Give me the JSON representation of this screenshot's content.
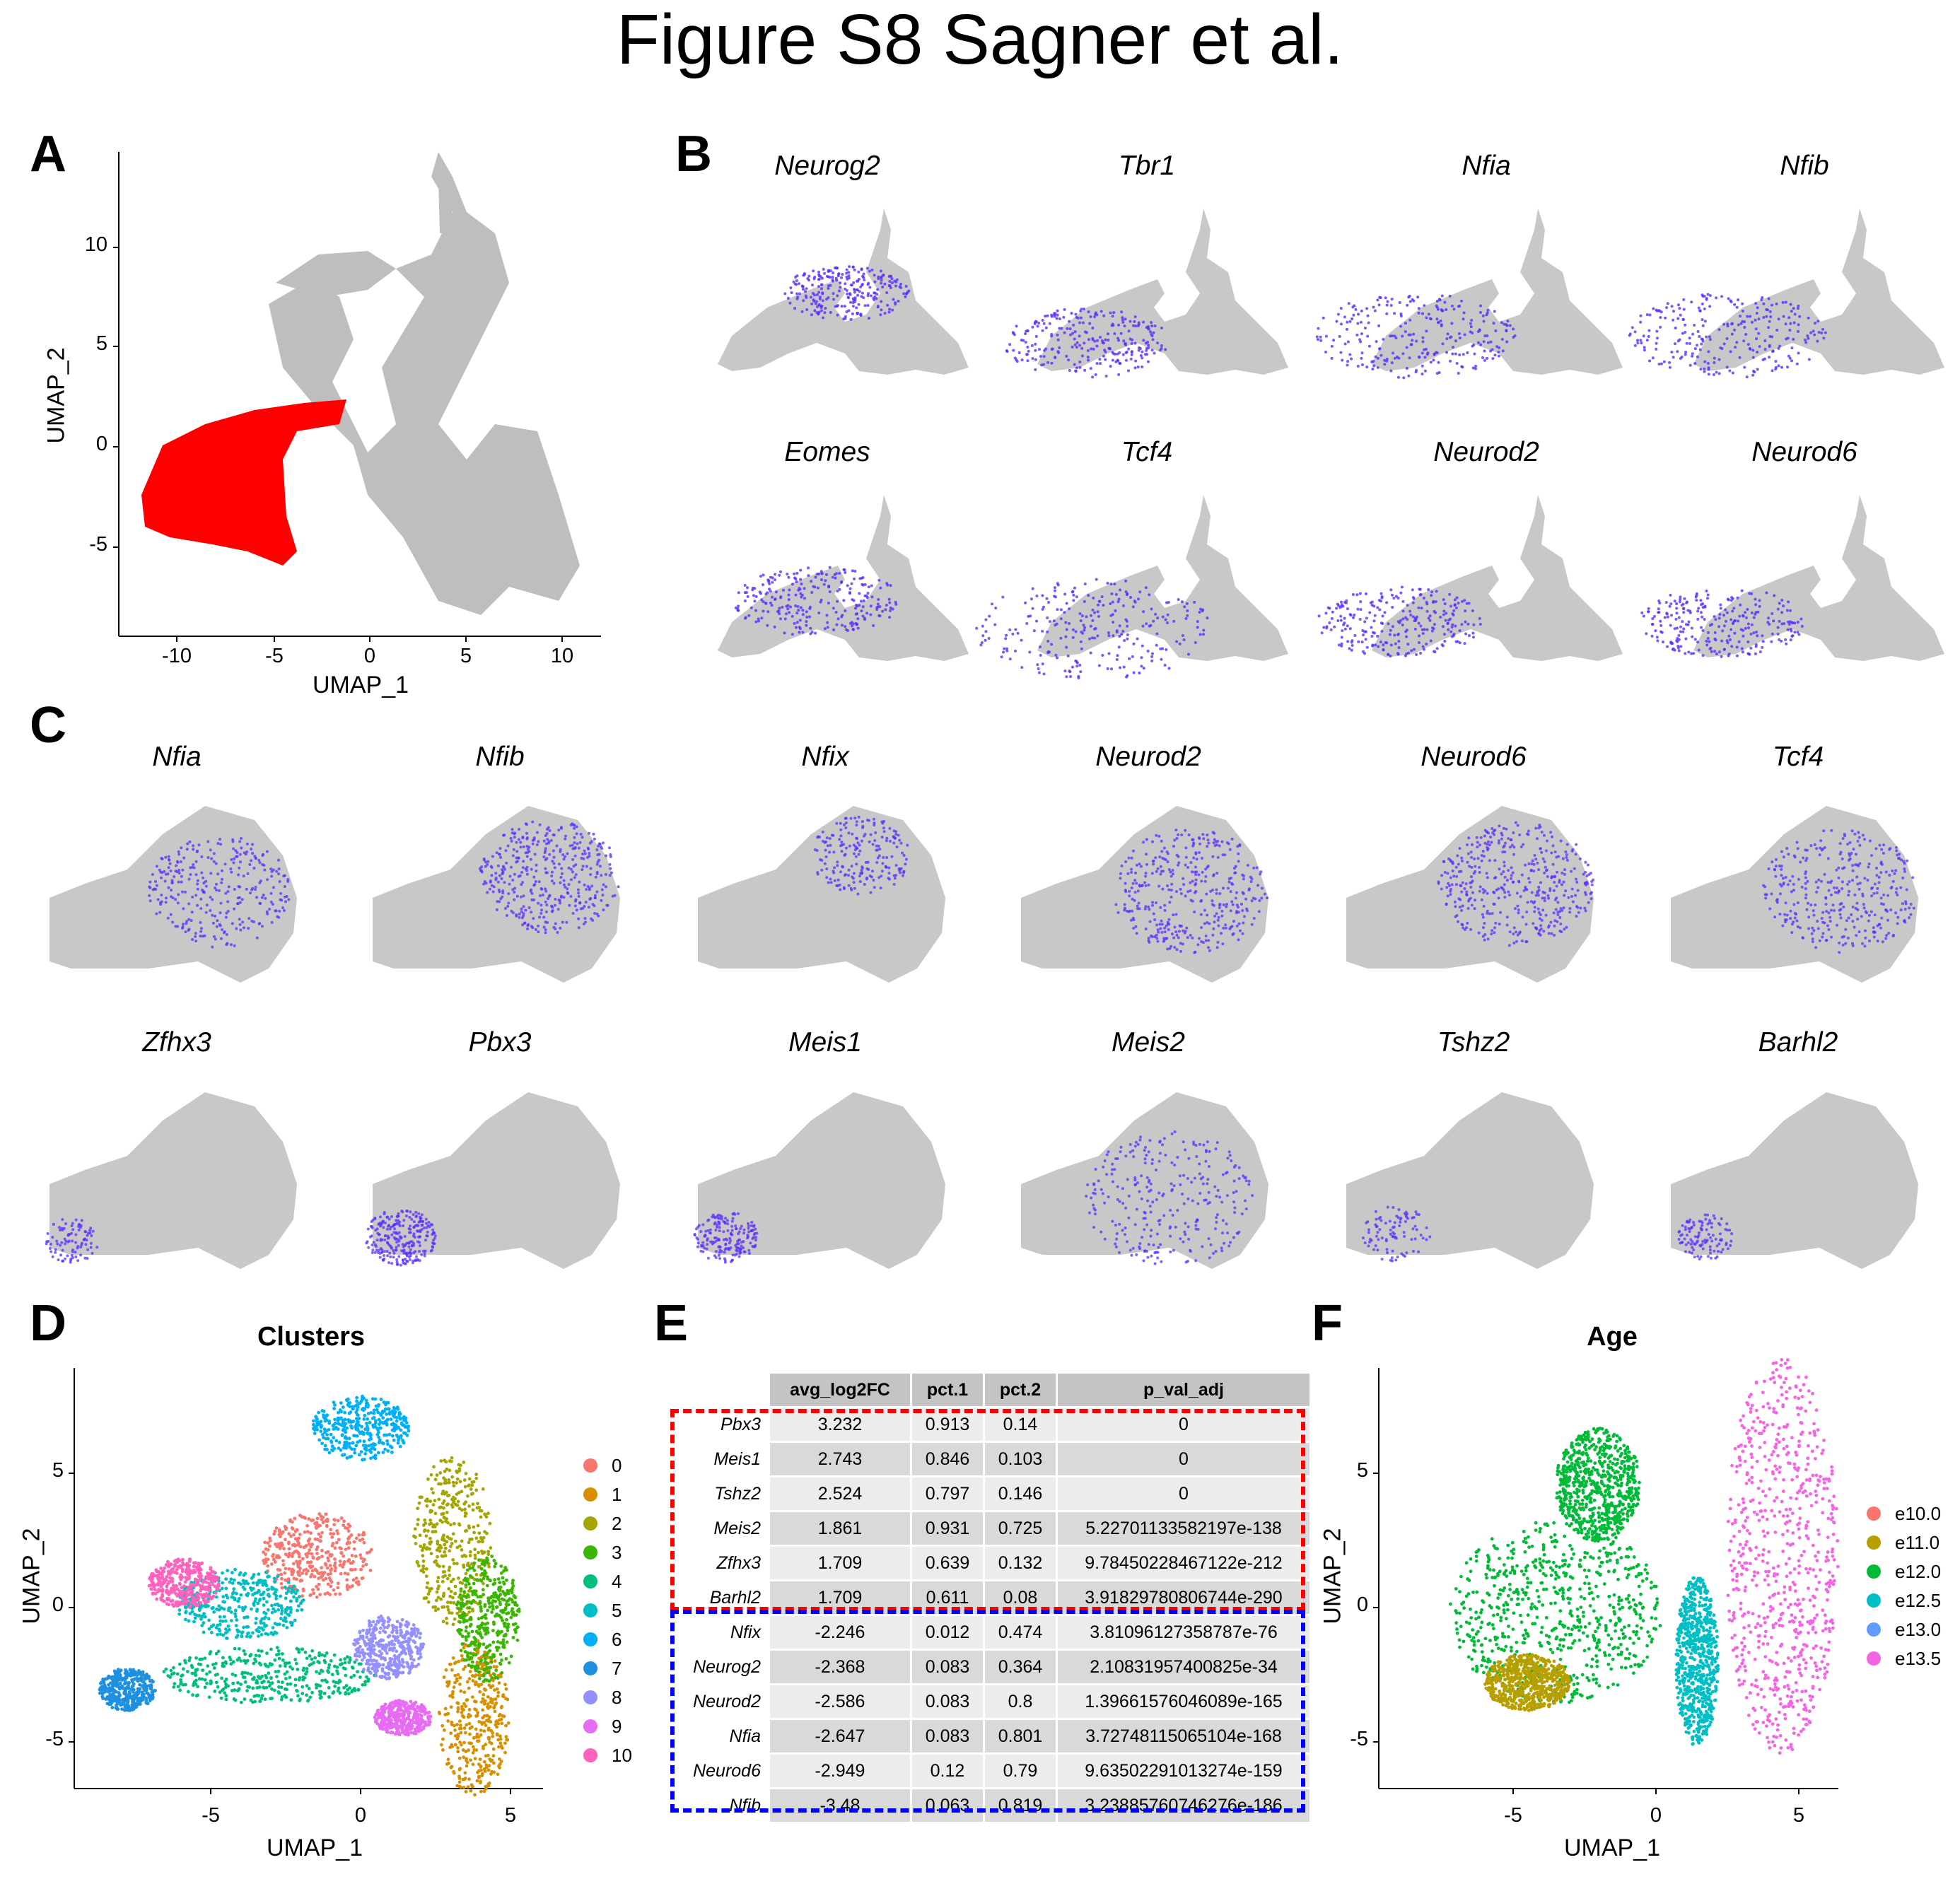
{
  "figure": {
    "title": "Figure S8 Sagner et al."
  },
  "panels": {
    "A": {
      "letter": "A",
      "xlabel": "UMAP_1",
      "ylabel": "UMAP_2",
      "xticks": [
        "-10",
        "-5",
        "0",
        "5",
        "10"
      ],
      "yticks": [
        "10",
        "5",
        "0",
        "-5"
      ],
      "highlight_color": "#ff0000",
      "background_color": "#bebebe"
    },
    "B": {
      "letter": "B",
      "genes": [
        "Neurog2",
        "Tbr1",
        "Nfia",
        "Nfib",
        "Eomes",
        "Tcf4",
        "Neurod2",
        "Neurod6"
      ],
      "expr_color": "#5a2dff"
    },
    "C": {
      "letter": "C",
      "genes": [
        "Nfia",
        "Nfib",
        "Nfix",
        "Neurod2",
        "Neurod6",
        "Tcf4",
        "Zfhx3",
        "Pbx3",
        "Meis1",
        "Meis2",
        "Tshz2",
        "Barhl2"
      ]
    },
    "D": {
      "letter": "D",
      "title": "Clusters",
      "xlabel": "UMAP_1",
      "ylabel": "UMAP_2",
      "xticks": [
        "-5",
        "0",
        "5"
      ],
      "yticks": [
        "5",
        "0",
        "-5"
      ],
      "legend": [
        {
          "label": "0",
          "color": "#f8766d"
        },
        {
          "label": "1",
          "color": "#d89000"
        },
        {
          "label": "2",
          "color": "#a3a500"
        },
        {
          "label": "3",
          "color": "#39b600"
        },
        {
          "label": "4",
          "color": "#00bf7d"
        },
        {
          "label": "5",
          "color": "#00bfc4"
        },
        {
          "label": "6",
          "color": "#00b0f6"
        },
        {
          "label": "7",
          "color": "#1e90e0"
        },
        {
          "label": "8",
          "color": "#9590ff"
        },
        {
          "label": "9",
          "color": "#e76bf3"
        },
        {
          "label": "10",
          "color": "#ff62bc"
        }
      ]
    },
    "E": {
      "letter": "E",
      "headers": [
        "avg_log2FC",
        "pct.1",
        "pct.2",
        "p_val_adj"
      ],
      "rows": [
        {
          "gene": "Pbx3",
          "avg_log2FC": "3.232",
          "pct1": "0.913",
          "pct2": "0.14",
          "p_val_adj": "0"
        },
        {
          "gene": "Meis1",
          "avg_log2FC": "2.743",
          "pct1": "0.846",
          "pct2": "0.103",
          "p_val_adj": "0"
        },
        {
          "gene": "Tshz2",
          "avg_log2FC": "2.524",
          "pct1": "0.797",
          "pct2": "0.146",
          "p_val_adj": "0"
        },
        {
          "gene": "Meis2",
          "avg_log2FC": "1.861",
          "pct1": "0.931",
          "pct2": "0.725",
          "p_val_adj": "5.22701133582197e-138"
        },
        {
          "gene": "Zfhx3",
          "avg_log2FC": "1.709",
          "pct1": "0.639",
          "pct2": "0.132",
          "p_val_adj": "9.78450228467122e-212"
        },
        {
          "gene": "Barhl2",
          "avg_log2FC": "1.709",
          "pct1": "0.611",
          "pct2": "0.08",
          "p_val_adj": "3.91829780806744e-290"
        },
        {
          "gene": "Nfix",
          "avg_log2FC": "-2.246",
          "pct1": "0.012",
          "pct2": "0.474",
          "p_val_adj": "3.81096127358787e-76"
        },
        {
          "gene": "Neurog2",
          "avg_log2FC": "-2.368",
          "pct1": "0.083",
          "pct2": "0.364",
          "p_val_adj": "2.10831957400825e-34"
        },
        {
          "gene": "Neurod2",
          "avg_log2FC": "-2.586",
          "pct1": "0.083",
          "pct2": "0.8",
          "p_val_adj": "1.39661576046089e-165"
        },
        {
          "gene": "Nfia",
          "avg_log2FC": "-2.647",
          "pct1": "0.083",
          "pct2": "0.801",
          "p_val_adj": "3.72748115065104e-168"
        },
        {
          "gene": "Neurod6",
          "avg_log2FC": "-2.949",
          "pct1": "0.12",
          "pct2": "0.79",
          "p_val_adj": "9.63502291013274e-159"
        },
        {
          "gene": "Nfib",
          "avg_log2FC": "-3.48",
          "pct1": "0.063",
          "pct2": "0.819",
          "p_val_adj": "3.23885760746276e-186"
        }
      ],
      "box_colors": {
        "upregulated": "#ff0000",
        "downregulated": "#0000ff"
      }
    },
    "F": {
      "letter": "F",
      "title": "Age",
      "xlabel": "UMAP_1",
      "ylabel": "UMAP_2",
      "xticks": [
        "-5",
        "0",
        "5"
      ],
      "yticks": [
        "5",
        "0",
        "-5"
      ],
      "legend": [
        {
          "label": "e10.0",
          "color": "#f8766d"
        },
        {
          "label": "e11.0",
          "color": "#b79f00"
        },
        {
          "label": "e12.0",
          "color": "#00ba38"
        },
        {
          "label": "e12.5",
          "color": "#00bfc4"
        },
        {
          "label": "e13.0",
          "color": "#619cff"
        },
        {
          "label": "e13.5",
          "color": "#f564e3"
        }
      ]
    }
  }
}
